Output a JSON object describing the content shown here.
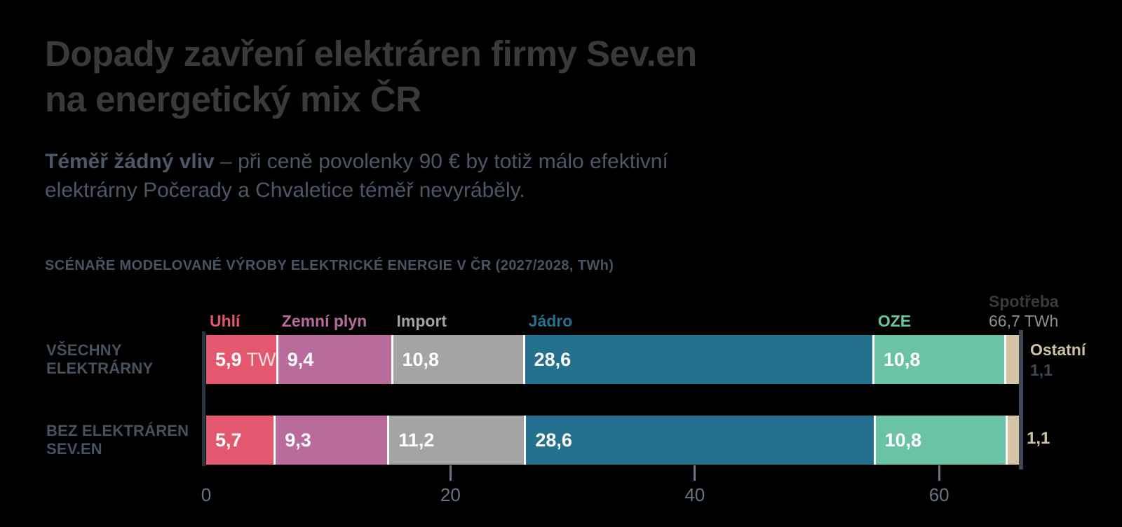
{
  "colors": {
    "background": "#000000",
    "title": "#3a3a3a",
    "subtitle": "#4e5765",
    "chart_title": "#4a5463",
    "row_label": "#47525f",
    "axis_label": "#6a7482",
    "axis_line": "#2b3441",
    "marker_line": "#3d4654",
    "consumption_label": "#3a3a3a",
    "consumption_value": "#8e8e8e",
    "other_label": "#cfc2a3",
    "other_value_dark": "#3e4856",
    "bar_value": "#ffffff",
    "separator": "#ffffff"
  },
  "header": {
    "title_line1": "Dopady zavření elektráren firmy Sev.en",
    "title_line2": "na energetický mix ČR",
    "subtitle_bold": "Téměř žádný vliv",
    "subtitle_rest": " – při ceně povolenky 90 € by totiž málo efektivní",
    "subtitle_line2": "elektrárny Počerady a Chvaletice téměř nevyráběly."
  },
  "chart_data": {
    "type": "bar",
    "orientation": "horizontal",
    "stacked": true,
    "title": "SCÉNAŘE MODELOVANÉ VÝROBY ELEKTRICKÉ ENERGIE V ČR (2027/2028, TWh)",
    "unit": "TWh",
    "value_suffix_first": " TWh",
    "categories": [
      "VŠECHNY ELEKTRÁRNY",
      "BEZ ELEKTRÁREN SEV.EN"
    ],
    "categories_lines": [
      [
        "VŠECHNY",
        "ELEKTRÁRNY"
      ],
      [
        "BEZ ELEKTRÁREN",
        "SEV.EN"
      ]
    ],
    "series": [
      {
        "name": "Uhlí",
        "color": "#e4586f",
        "values": [
          5.9,
          5.7
        ]
      },
      {
        "name": "Zemní plyn",
        "color": "#b96b9c",
        "values": [
          9.4,
          9.3
        ]
      },
      {
        "name": "Import",
        "color": "#a6a3a4",
        "values": [
          10.8,
          11.2
        ]
      },
      {
        "name": "Jádro",
        "color": "#24708f",
        "values": [
          28.6,
          28.6
        ]
      },
      {
        "name": "OZE",
        "color": "#69c3a4",
        "values": [
          10.8,
          10.8
        ]
      },
      {
        "name": "Ostatní",
        "color": "#d2c4a4",
        "values": [
          1.1,
          1.1
        ]
      }
    ],
    "x_ticks": [
      0,
      20,
      40,
      60
    ],
    "xlim": [
      0,
      66.7
    ],
    "grid": false,
    "legend_position": "above-segments",
    "reference_line": {
      "label": "Spotřeba",
      "display": "66,7 TWh",
      "value": 66.7
    }
  }
}
